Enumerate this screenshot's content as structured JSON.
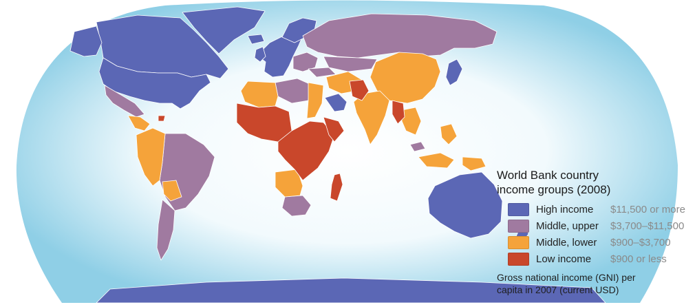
{
  "legend": {
    "title_line1": "World Bank country",
    "title_line2": "income groups (2008)",
    "items": [
      {
        "label": "High income",
        "range": "$11,500 or more",
        "color": "#5b67b5"
      },
      {
        "label": "Middle, upper",
        "range": "$3,700–$11,500",
        "color": "#a07aa0"
      },
      {
        "label": "Middle, lower",
        "range": "$900–$3,700",
        "color": "#f5a33a"
      },
      {
        "label": "Low income",
        "range": "$900 or less",
        "color": "#c9472b"
      }
    ],
    "note_line1": "Gross  national income (GNI) per",
    "note_line2": "capita in 2007 (current USD)"
  },
  "colors": {
    "ocean_inner": "#ffffff",
    "ocean_outer": "#9fd6ea",
    "border": "#ffffff"
  }
}
